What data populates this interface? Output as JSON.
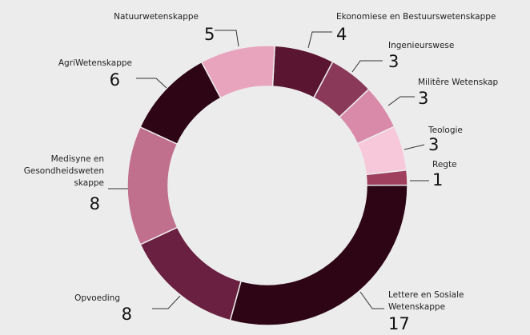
{
  "chart_data": {
    "type": "donut",
    "categories": [
      "Ekonomiese en Bestuurswetenskappe",
      "Ingenieurswese",
      "Militêre Wetenskap",
      "Teologie",
      "Regte",
      "Lettere en Sosiale\nWetenskappe",
      "Opvoeding",
      "Medisyne en\nGesondheidsweten\nskappe",
      "AgriWetenskappe",
      "Natuurwetenskappe"
    ],
    "values": [
      4,
      3,
      3,
      3,
      1,
      17,
      8,
      8,
      6,
      5
    ],
    "colors": [
      "#5a1530",
      "#8a3a58",
      "#d98aa8",
      "#f7c8da",
      "#a0405f",
      "#2e0515",
      "#6a2040",
      "#c06f8c",
      "#2e0515",
      "#e8a4bc"
    ]
  }
}
